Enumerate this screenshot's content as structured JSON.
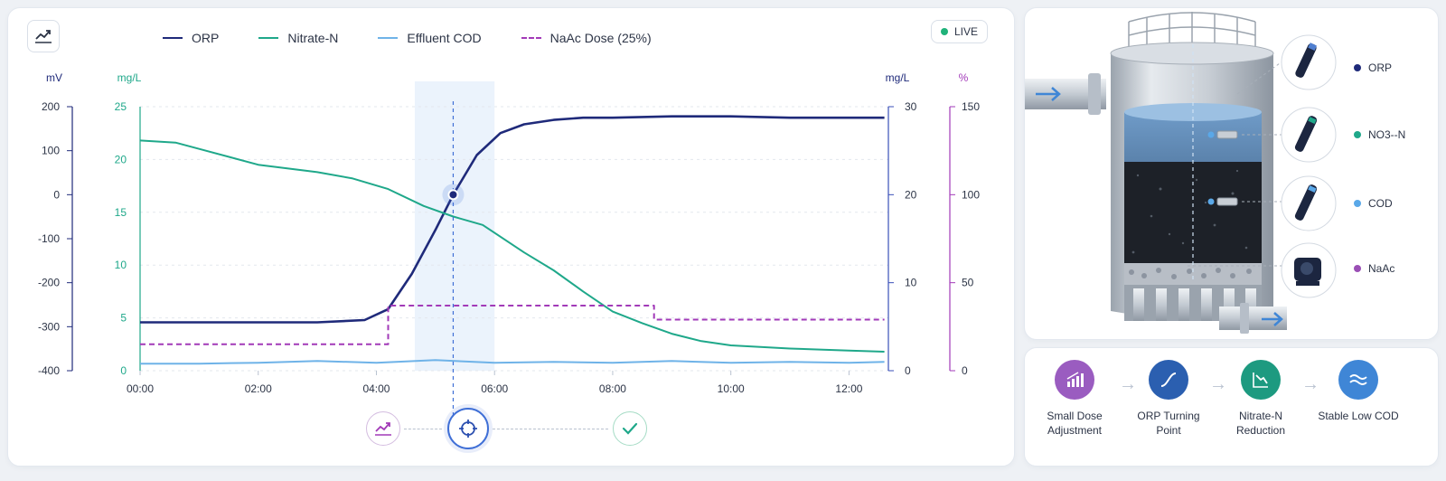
{
  "header": {
    "chart_icon": "trend-chart-icon",
    "live_label": "LIVE"
  },
  "legend": [
    {
      "label": "ORP",
      "color": "#1f2a7a",
      "style": "solid"
    },
    {
      "label": "Nitrate-N",
      "color": "#1fa88a",
      "style": "solid"
    },
    {
      "label": "Effluent COD",
      "color": "#6fb3e8",
      "style": "solid"
    },
    {
      "label": "NaAc Dose (25%)",
      "color": "#a23ab8",
      "style": "dashed"
    }
  ],
  "chart_data": {
    "type": "line",
    "x_ticks": [
      "00:00",
      "02:00",
      "04:00",
      "06:00",
      "08:00",
      "10:00",
      "12:00"
    ],
    "xlim": [
      "00:00",
      "12:40"
    ],
    "axes": {
      "orp": {
        "unit": "mV",
        "ticks": [
          "200",
          "100",
          "0",
          "-100",
          "-200",
          "-300",
          "-400"
        ],
        "ylim": [
          -400,
          200
        ],
        "color": "#1f2a7a"
      },
      "nitrate": {
        "unit": "mg/L",
        "ticks": [
          "25",
          "20",
          "15",
          "10",
          "5",
          "0"
        ],
        "ylim": [
          0,
          25
        ],
        "color": "#1fa88a"
      },
      "cod": {
        "unit": "mg/L",
        "ticks": [
          "30",
          "20",
          "10",
          "0"
        ],
        "ylim": [
          0,
          30
        ],
        "color": "#3a4fb8"
      },
      "dose": {
        "unit": "%",
        "ticks": [
          "150",
          "100",
          "50",
          "0"
        ],
        "ylim": [
          0,
          150
        ],
        "color": "#a23ab8"
      }
    },
    "series": [
      {
        "name": "ORP",
        "axis": "orp",
        "color": "#1f2a7a",
        "x": [
          0,
          1,
          2,
          3,
          3.8,
          4.2,
          4.6,
          5.0,
          5.3,
          5.7,
          6.1,
          6.5,
          7.0,
          7.5,
          8,
          9,
          10,
          11,
          12,
          12.6
        ],
        "y": [
          -290,
          -290,
          -290,
          -290,
          -285,
          -260,
          -180,
          -80,
          0,
          90,
          140,
          160,
          170,
          175,
          175,
          178,
          178,
          175,
          175,
          175
        ]
      },
      {
        "name": "Nitrate-N",
        "axis": "nitrate",
        "color": "#1fa88a",
        "x": [
          0,
          0.6,
          1,
          2,
          3,
          3.6,
          4.2,
          4.8,
          5.3,
          5.8,
          6.5,
          7,
          7.5,
          8,
          8.5,
          9,
          9.5,
          10,
          11,
          12,
          12.6
        ],
        "y": [
          21.8,
          21.6,
          21.0,
          19.5,
          18.8,
          18.2,
          17.2,
          15.6,
          14.6,
          13.8,
          11.2,
          9.5,
          7.5,
          5.6,
          4.5,
          3.5,
          2.8,
          2.4,
          2.1,
          1.9,
          1.8
        ]
      },
      {
        "name": "Effluent COD",
        "axis": "cod",
        "color": "#6fb3e8",
        "x": [
          0,
          1,
          2,
          3,
          4,
          5,
          6,
          7,
          8,
          9,
          10,
          11,
          12,
          12.6
        ],
        "y": [
          0.8,
          0.8,
          0.9,
          1.1,
          0.9,
          1.2,
          0.9,
          1.0,
          0.9,
          1.1,
          0.9,
          1.0,
          0.9,
          1.0
        ]
      },
      {
        "name": "NaAc Dose (25%)",
        "axis": "dose",
        "color": "#a23ab8",
        "dashed": true,
        "x": [
          0,
          4.2,
          4.2,
          8.7,
          8.7,
          12.6
        ],
        "y": [
          15,
          15,
          37,
          37,
          29,
          29
        ]
      }
    ],
    "highlight": {
      "from": 4.65,
      "to": 6.0
    },
    "marker": {
      "x": 5.3,
      "series": "ORP",
      "y": 0
    }
  },
  "workflow": [
    {
      "icon": "trend-chart-icon",
      "state": "done"
    },
    {
      "icon": "crosshair-icon",
      "state": "active"
    },
    {
      "icon": "check-icon",
      "state": "pending"
    }
  ],
  "sensors": [
    {
      "label": "ORP",
      "color": "#1f2a7a"
    },
    {
      "label": "NO3--N",
      "color": "#1fa88a"
    },
    {
      "label": "COD",
      "color": "#5aa8e8"
    },
    {
      "label": "NaAc",
      "color": "#9a4fb5"
    }
  ],
  "process_steps": [
    {
      "label": "Small Dose Adjustment",
      "icon": "dose-bars-icon",
      "color": "#9a5cc0"
    },
    {
      "label": "ORP Turning Point",
      "icon": "s-curve-icon",
      "color": "#2b5fb0"
    },
    {
      "label": "Nitrate-N Reduction",
      "icon": "decline-icon",
      "color": "#1d9a80"
    },
    {
      "label": "Stable Low COD",
      "icon": "wave-icon",
      "color": "#3f86d6"
    }
  ]
}
